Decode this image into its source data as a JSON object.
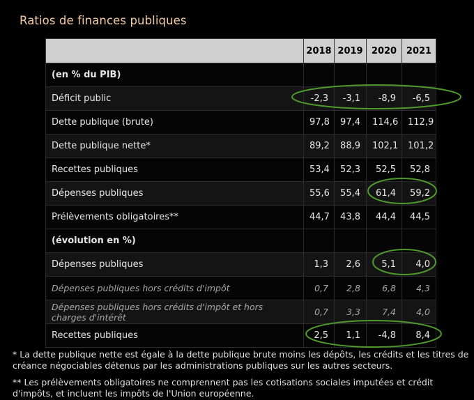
{
  "title": "Ratios de finances publiques",
  "header": {
    "label": "",
    "years": [
      "2018",
      "2019",
      "2020",
      "2021"
    ]
  },
  "rows": [
    {
      "type": "section",
      "label": "(en % du PIB)"
    },
    {
      "type": "data",
      "label": "Déficit public",
      "values": [
        "-2,3",
        "-3,1",
        "-8,9",
        "-6,5"
      ]
    },
    {
      "type": "data",
      "label": "Dette publique (brute)",
      "values": [
        "97,8",
        "97,4",
        "114,6",
        "112,9"
      ]
    },
    {
      "type": "data",
      "label": "Dette publique nette*",
      "values": [
        "89,2",
        "88,9",
        "102,1",
        "101,2"
      ]
    },
    {
      "type": "data",
      "label": "Recettes publiques",
      "values": [
        "53,4",
        "52,3",
        "52,5",
        "52,8"
      ]
    },
    {
      "type": "data",
      "label": "Dépenses publiques",
      "values": [
        "55,6",
        "55,4",
        "61,4",
        "59,2"
      ]
    },
    {
      "type": "data",
      "label": "Prélèvements obligatoires**",
      "values": [
        "44,7",
        "43,8",
        "44,4",
        "44,5"
      ]
    },
    {
      "type": "section",
      "label": "(évolution en %)"
    },
    {
      "type": "data",
      "label": "Dépenses publiques",
      "values": [
        "1,3",
        "2,6",
        "5,1",
        "4,0"
      ]
    },
    {
      "type": "italic",
      "label": "Dépenses publiques hors crédits d'impôt",
      "values": [
        "0,7",
        "2,8",
        "6,8",
        "4,3"
      ]
    },
    {
      "type": "italic",
      "label": "Dépenses publiques hors crédits d'impôt et hors charges d'intérêt",
      "values": [
        "0,7",
        "3,3",
        "7,4",
        "4,0"
      ]
    },
    {
      "type": "data",
      "label": "Recettes publiques",
      "values": [
        "2,5",
        "1,1",
        "-4,8",
        "8,4"
      ]
    }
  ],
  "notes": [
    "* La dette publique nette est égale à la dette publique brute moins les dépôts, les crédits et les titres de créance négociables détenus par les administrations publiques sur les autres secteurs.",
    "** Les prélèvements obligatoires ne comprennent pas les cotisations sociales imputées et crédit d'impôts, et incluent les impôts de l'Union européenne."
  ],
  "highlight_color": "#4f9a2c"
}
